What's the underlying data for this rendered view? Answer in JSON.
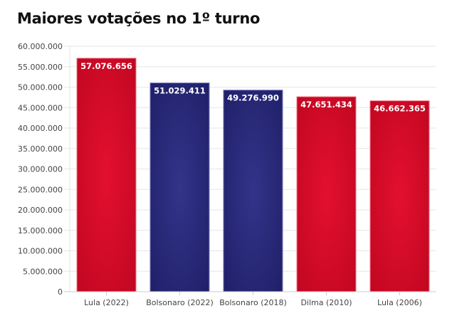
{
  "chart_data": {
    "type": "bar",
    "title": "Maiores votações no 1º turno",
    "categories": [
      "Lula (2022)",
      "Bolsonaro (2022)",
      "Bolsonaro (2018)",
      "Dilma (2010)",
      "Lula (2006)"
    ],
    "values": [
      57076656,
      51029411,
      49276990,
      47651434,
      46662365
    ],
    "data_labels": [
      "57.076.656",
      "51.029.411",
      "49.276.990",
      "47.651.434",
      "46.662.365"
    ],
    "colors": [
      "#d30b28",
      "#2b2b7e",
      "#2b2b7e",
      "#d30b28",
      "#d30b28"
    ],
    "ylim": [
      0,
      60000000
    ],
    "yticks": [
      0,
      5000000,
      10000000,
      15000000,
      20000000,
      25000000,
      30000000,
      35000000,
      40000000,
      45000000,
      50000000,
      55000000,
      60000000
    ],
    "ytick_labels": [
      "0",
      "5.000.000",
      "10.000.000",
      "15.000.000",
      "20.000.000",
      "25.000.000",
      "30.000.000",
      "35.000.000",
      "40.000.000",
      "45.000.000",
      "50.000.000",
      "55.000.000",
      "60.000.000"
    ],
    "grid": true,
    "xlabel": "",
    "ylabel": ""
  }
}
